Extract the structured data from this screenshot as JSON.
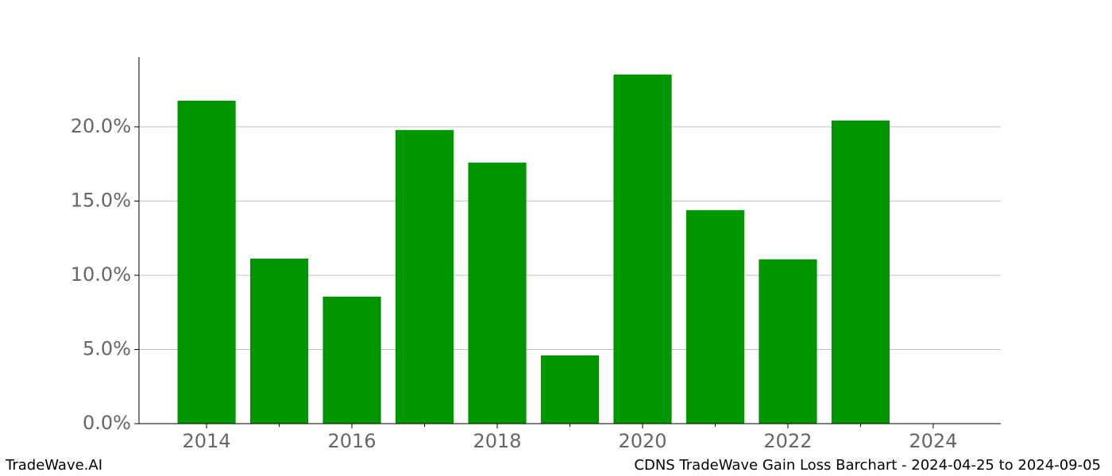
{
  "chart_data": {
    "type": "bar",
    "x": [
      2014,
      2015,
      2016,
      2017,
      2018,
      2019,
      2020,
      2021,
      2022,
      2023
    ],
    "values": [
      21.76,
      11.12,
      8.56,
      19.79,
      17.59,
      4.6,
      23.53,
      14.39,
      11.07,
      20.43
    ],
    "color": "#009600",
    "bar_width": 0.8,
    "xlim": [
      2013.07,
      2024.93
    ],
    "xticks": [
      2014,
      2016,
      2018,
      2020,
      2022,
      2024
    ],
    "xminorticks": [
      2015,
      2017,
      2019,
      2021,
      2023
    ],
    "ylim": [
      0,
      24.7
    ],
    "yticks": [
      {
        "value": 0,
        "label": "0.0%"
      },
      {
        "value": 5,
        "label": "5.0%"
      },
      {
        "value": 10,
        "label": "10.0%"
      },
      {
        "value": 15,
        "label": "15.0%"
      },
      {
        "value": 20,
        "label": "20.0%"
      }
    ],
    "grid": true,
    "footer_left": "TradeWave.AI",
    "footer_right": "CDNS TradeWave Gain Loss Barchart - 2024-04-25 to 2024-09-05"
  }
}
